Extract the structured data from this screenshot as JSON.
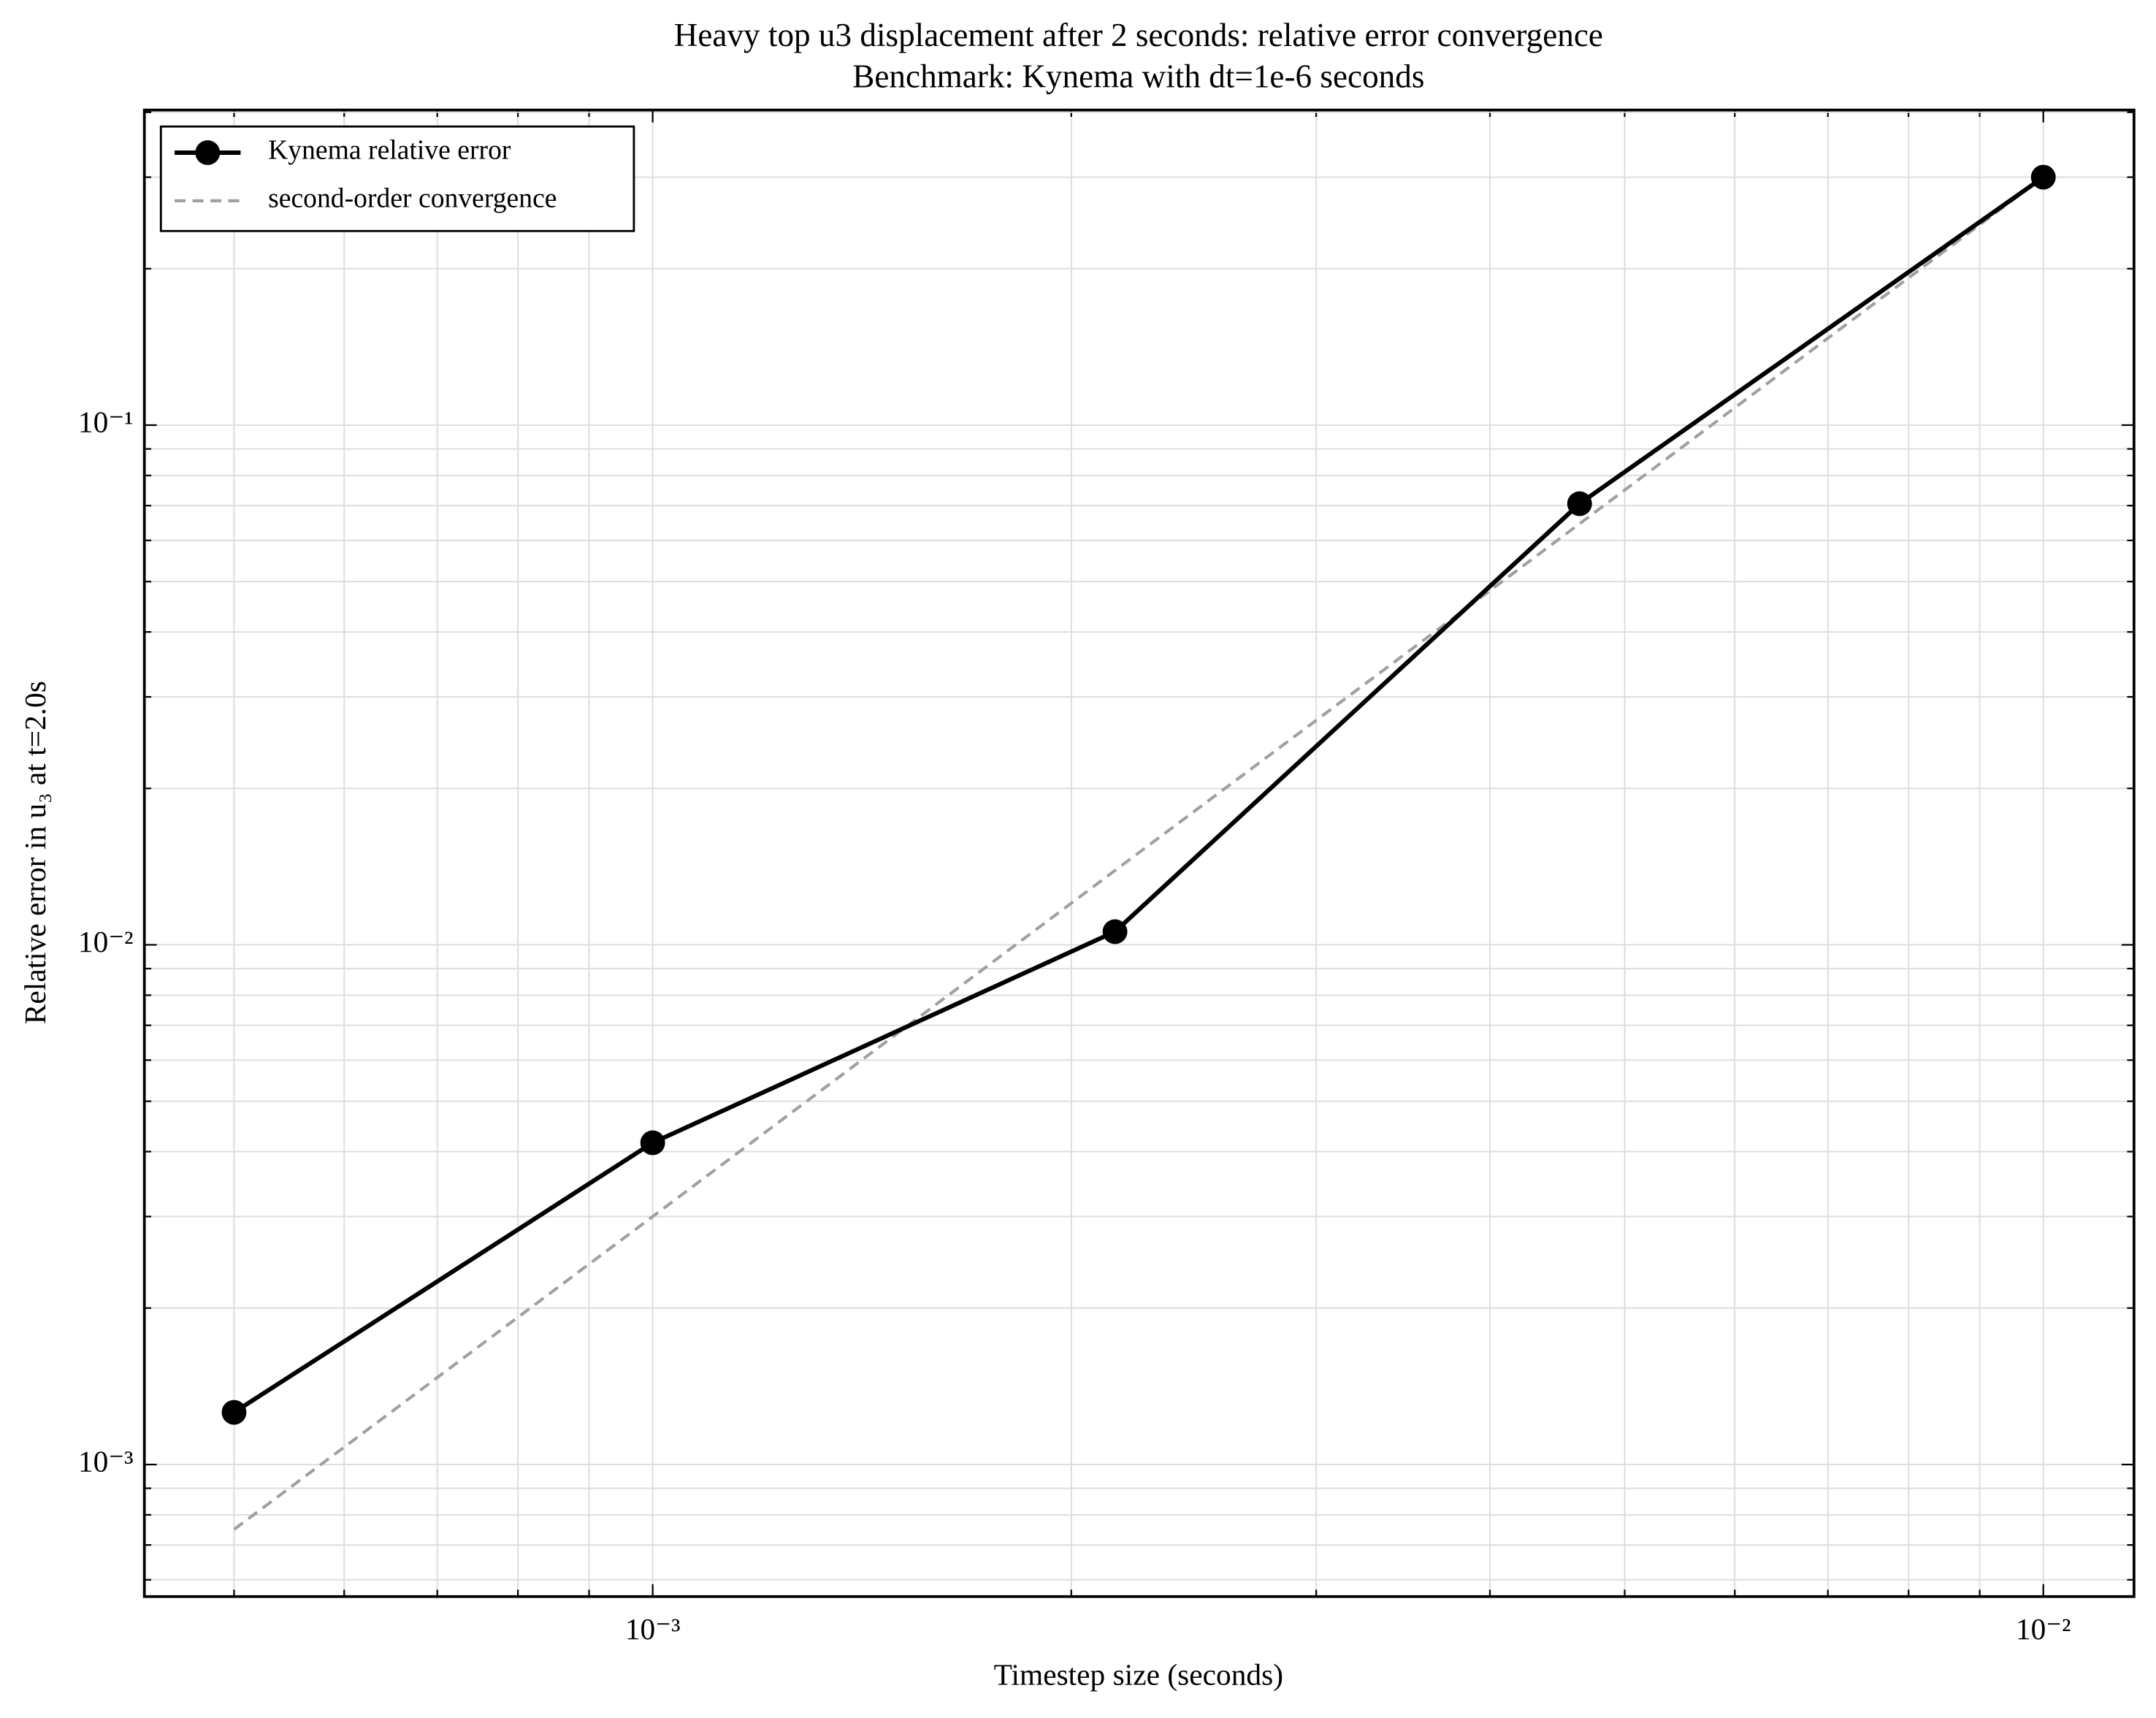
{
  "chart_data": {
    "type": "line",
    "title": "Heavy top u3 displacement after 2 seconds: relative error convergence",
    "subtitle": "Benchmark: Kynema with dt=1e-6 seconds",
    "x_label": "Timestep size (seconds)",
    "y_label": "Relative error in u₃ at t=2.0s",
    "x": [
      0.0005,
      0.001,
      0.00215,
      0.00464,
      0.01
    ],
    "series": [
      {
        "name": "Kynema relative error",
        "color": "#000000",
        "linestyle": "solid",
        "markers": true,
        "values": [
          0.00126,
          0.00416,
          0.0106,
          0.0706,
          0.3
        ]
      },
      {
        "name": "second-order convergence",
        "color": "#a0a0a0",
        "linestyle": "dashed",
        "markers": false,
        "values": [
          0.00075,
          0.003,
          0.0139,
          0.0646,
          0.3
        ]
      }
    ],
    "xscale": "log",
    "yscale": "log",
    "xlim": [
      0.000431,
      0.01162
    ],
    "ylim": [
      0.000557,
      0.404
    ],
    "xticks": [
      {
        "value": 0.001,
        "label": "10⁻³"
      },
      {
        "value": 0.01,
        "label": "10⁻²"
      }
    ],
    "yticks": [
      {
        "value": 0.001,
        "label": "10⁻³"
      },
      {
        "value": 0.01,
        "label": "10⁻²"
      },
      {
        "value": 0.1,
        "label": "10⁻¹"
      }
    ],
    "xminorticks": [
      0.0005,
      0.0006,
      0.0007,
      0.0008,
      0.0009,
      0.002,
      0.003,
      0.004,
      0.005,
      0.006,
      0.007,
      0.008,
      0.009
    ],
    "yminorticks": [
      0.0006,
      0.0007,
      0.0008,
      0.0009,
      0.002,
      0.003,
      0.004,
      0.005,
      0.006,
      0.007,
      0.008,
      0.009,
      0.02,
      0.03,
      0.04,
      0.05,
      0.06,
      0.07,
      0.08,
      0.09,
      0.2,
      0.3,
      0.4
    ],
    "grid": true,
    "legend": "upper left"
  }
}
